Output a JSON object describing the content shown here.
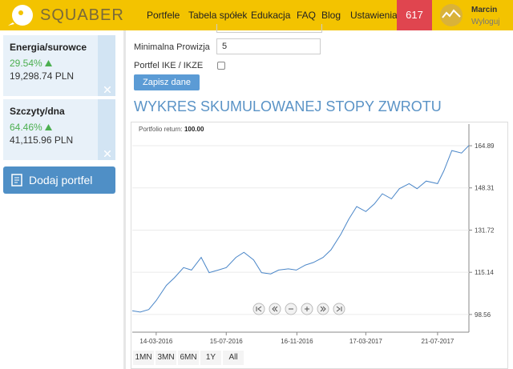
{
  "header": {
    "logo": "SQUABER",
    "nav": [
      "Portfele",
      "Tabela spółek",
      "Edukacja",
      "FAQ",
      "Blog",
      "Ustawienia"
    ],
    "badge": "617",
    "user": "Marcin",
    "logout": "Wyloguj"
  },
  "sidebar": {
    "portfolios": [
      {
        "name": "Energia/surowce",
        "change": "29.54%",
        "value": "19,298.74 PLN"
      },
      {
        "name": "Szczyty/dna",
        "change": "64.46%",
        "value": "41,115.96 PLN"
      }
    ],
    "add_button": "Dodaj portfel"
  },
  "form": {
    "commission_label": "Minimalna Prowizja",
    "commission_value": "5",
    "ike_label": "Portfel IKE / IKZE",
    "save_button": "Zapisz dane"
  },
  "chart_data": {
    "type": "line",
    "title": "WYKRES SKUMULOWANEJ STOPY ZWROTU",
    "annotation_label": "Portfolio return:",
    "annotation_value": "100.00",
    "color": "#4a86c8",
    "x": [
      "2016-02-01",
      "2016-02-15",
      "2016-03-01",
      "2016-03-14",
      "2016-04-01",
      "2016-04-15",
      "2016-05-01",
      "2016-05-15",
      "2016-06-01",
      "2016-06-15",
      "2016-07-01",
      "2016-07-15",
      "2016-08-01",
      "2016-08-15",
      "2016-09-01",
      "2016-09-15",
      "2016-10-01",
      "2016-10-15",
      "2016-11-01",
      "2016-11-15",
      "2016-12-01",
      "2016-12-15",
      "2017-01-01",
      "2017-01-15",
      "2017-02-01",
      "2017-02-15",
      "2017-03-01",
      "2017-03-17",
      "2017-04-01",
      "2017-04-15",
      "2017-05-01",
      "2017-05-15",
      "2017-06-01",
      "2017-06-15",
      "2017-07-01",
      "2017-07-21",
      "2017-08-01",
      "2017-08-15",
      "2017-09-01",
      "2017-09-14"
    ],
    "values": [
      100,
      99.5,
      100.5,
      104,
      110,
      113,
      117,
      116,
      121,
      115,
      116,
      117,
      121,
      123,
      120,
      115,
      114.5,
      116,
      116.5,
      116,
      118,
      119,
      121,
      124,
      130,
      136,
      141,
      139,
      142,
      146,
      144,
      148,
      150,
      148,
      151,
      150,
      155,
      163,
      162,
      165
    ],
    "xlim": [
      "2016-02-01",
      "2017-09-14"
    ],
    "xticks": [
      {
        "value": "2016-03-14",
        "label": "14-03-2016"
      },
      {
        "value": "2016-07-15",
        "label": "15-07-2016"
      },
      {
        "value": "2016-11-16",
        "label": "16-11-2016"
      },
      {
        "value": "2017-03-17",
        "label": "17-03-2017"
      },
      {
        "value": "2017-07-21",
        "label": "21-07-2017"
      }
    ],
    "ylim": [
      91.6,
      173.4
    ],
    "yticks": [
      98.56,
      115.14,
      131.72,
      148.31,
      164.89
    ],
    "grid": true
  },
  "range_buttons": [
    "1MN",
    "3MN",
    "6MN",
    "1Y",
    "All"
  ]
}
